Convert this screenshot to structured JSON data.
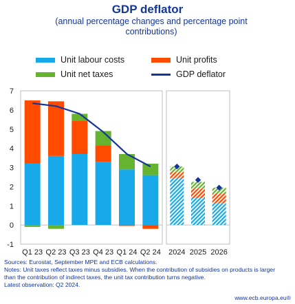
{
  "title": "GDP deflator",
  "subtitle": "(annual percentage changes and percentage point contributions)",
  "legend": {
    "unit_labour_costs": "Unit labour costs",
    "unit_profits": "Unit profits",
    "unit_net_taxes": "Unit net taxes",
    "gdp_deflator": "GDP deflator"
  },
  "colors": {
    "unit_labour_costs": "#17a9e9",
    "unit_profits": "#ff4b00",
    "unit_net_taxes": "#65b32e",
    "gdp_deflator": "#13359c"
  },
  "chart_data": {
    "type": "bar",
    "stacked": true,
    "categories": [
      "Q1 23",
      "Q2 23",
      "Q3 23",
      "Q4 23",
      "Q1 24",
      "Q2 24",
      "2024",
      "2025",
      "2026"
    ],
    "projection_categories": [
      "2024",
      "2025",
      "2026"
    ],
    "series": [
      {
        "name": "Unit labour costs",
        "values": [
          3.2,
          3.6,
          3.7,
          3.3,
          2.9,
          2.6,
          2.45,
          1.4,
          1.15
        ]
      },
      {
        "name": "Unit profits",
        "values": [
          3.3,
          2.85,
          1.75,
          0.85,
          -0.05,
          -0.2,
          0.3,
          0.5,
          0.5
        ]
      },
      {
        "name": "Unit net taxes",
        "values": [
          -0.1,
          -0.2,
          0.35,
          0.75,
          0.8,
          0.6,
          0.3,
          0.35,
          0.3
        ]
      },
      {
        "name": "GDP deflator",
        "type": "line",
        "values": [
          6.35,
          6.2,
          5.8,
          4.85,
          3.7,
          3.05,
          3.05,
          2.35,
          1.95
        ]
      }
    ],
    "ylim": [
      -1,
      7
    ],
    "yticks": [
      -1,
      0,
      1,
      2,
      3,
      4,
      5,
      6,
      7
    ],
    "grid": false,
    "legend_position": "top"
  },
  "notes": [
    "Sources: Eurostat, September MPE and ECB calculations.",
    "Notes: Unit taxes reflect taxes minus subsidies. When the contribution of subsidies on products is larger than the contribution of indirect taxes, the unit tax contribution turns negative.",
    "Latest observation: Q2 2024."
  ],
  "source_url": "www.ecb.europa.eu®"
}
